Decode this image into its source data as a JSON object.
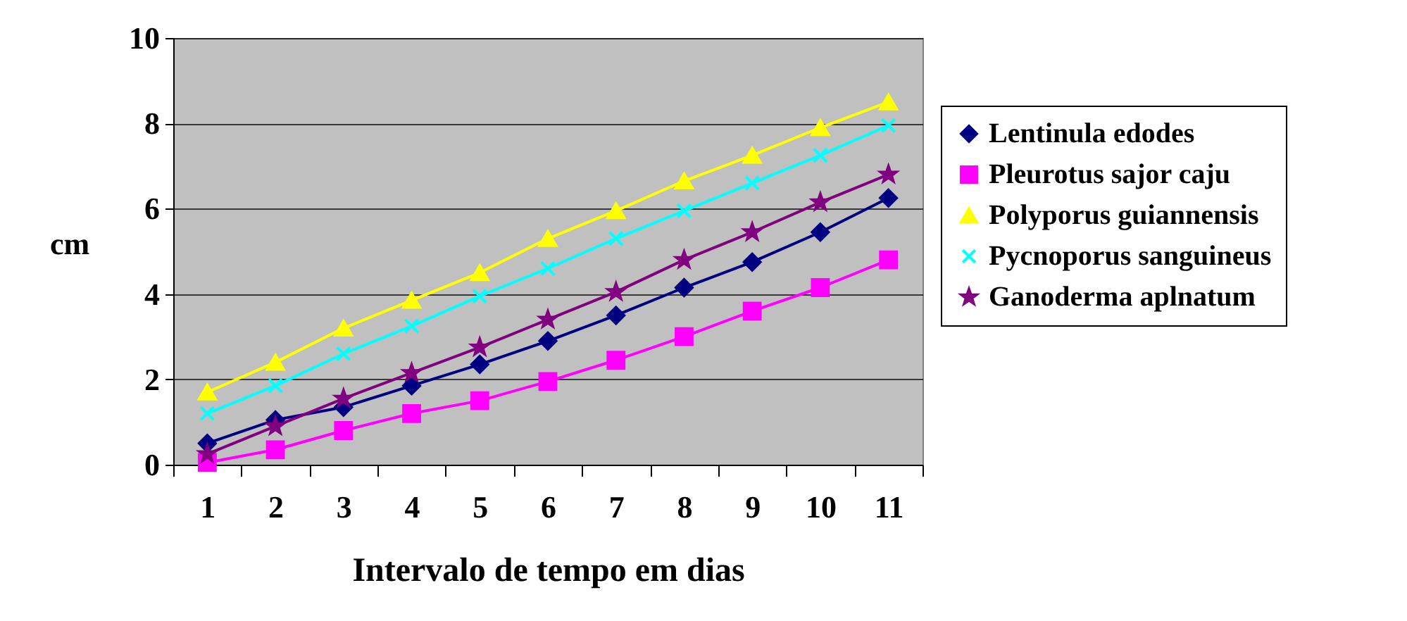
{
  "chart_data": {
    "type": "line",
    "xlabel": "Intervalo de tempo em dias",
    "ylabel": "cm",
    "categories": [
      "1",
      "2",
      "3",
      "4",
      "5",
      "6",
      "7",
      "8",
      "9",
      "10",
      "11"
    ],
    "ylim": [
      0,
      10
    ],
    "yticks": [
      0,
      2,
      4,
      6,
      8,
      10
    ],
    "grid": "y",
    "legend": "right",
    "line_style": "solid",
    "series": [
      {
        "name": "Lentinula edodes",
        "color": "#000080",
        "marker": "diamond",
        "values": [
          0.5,
          1.05,
          1.35,
          1.85,
          2.35,
          2.9,
          3.5,
          4.15,
          4.75,
          5.45,
          6.25
        ]
      },
      {
        "name": "Pleurotus sajor caju",
        "color": "#ff00ff",
        "marker": "square",
        "values": [
          0.05,
          0.35,
          0.8,
          1.2,
          1.5,
          1.95,
          2.45,
          3.0,
          3.6,
          4.15,
          4.8
        ]
      },
      {
        "name": "Polyporus guiannensis",
        "color": "#ffff00",
        "marker": "triangle",
        "values": [
          1.7,
          2.4,
          3.2,
          3.85,
          4.5,
          5.3,
          5.95,
          6.65,
          7.25,
          7.9,
          8.5
        ]
      },
      {
        "name": "Pycnoporus sanguineus",
        "color": "#00ffff",
        "marker": "cross",
        "values": [
          1.2,
          1.85,
          2.6,
          3.25,
          3.95,
          4.6,
          5.3,
          5.95,
          6.6,
          7.25,
          7.95
        ]
      },
      {
        "name": "Ganoderma aplnatum",
        "color": "#800080",
        "marker": "star",
        "values": [
          0.25,
          0.9,
          1.55,
          2.15,
          2.75,
          3.4,
          4.05,
          4.8,
          5.45,
          6.15,
          6.8
        ]
      }
    ]
  }
}
